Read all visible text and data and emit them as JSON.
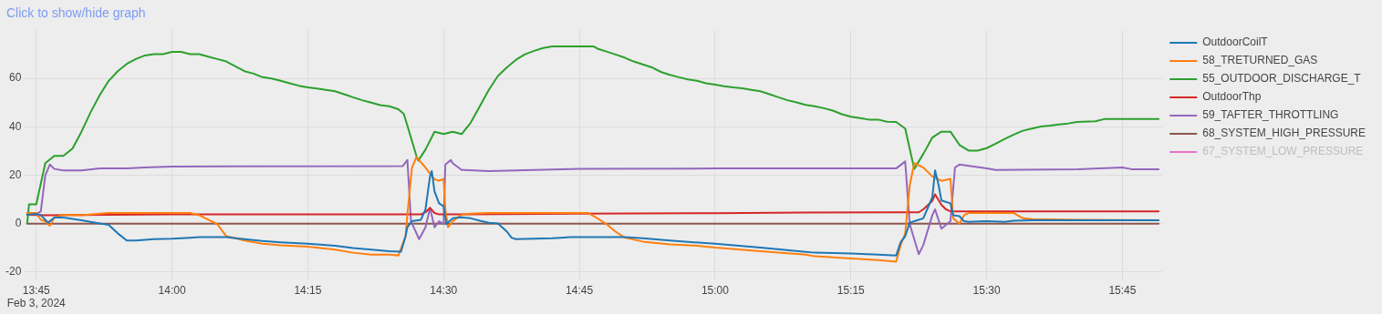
{
  "chart_data": {
    "type": "line",
    "annotations": [
      "Click to show/hide graph"
    ],
    "xlim": [
      "2024-02-03T13:43:45",
      "2024-02-03T15:49:25"
    ],
    "xticks": [
      {
        "value": "2024-02-03T13:45",
        "label": "13:45\nFeb 3, 2024"
      },
      {
        "value": "2024-02-03T14:00",
        "label": "14:00"
      },
      {
        "value": "2024-02-03T14:15",
        "label": "14:15"
      },
      {
        "value": "2024-02-03T14:30",
        "label": "14:30"
      },
      {
        "value": "2024-02-03T14:45",
        "label": "14:45"
      },
      {
        "value": "2024-02-03T15:00",
        "label": "15:00"
      },
      {
        "value": "2024-02-03T15:15",
        "label": "15:15"
      },
      {
        "value": "2024-02-03T15:30",
        "label": "15:30"
      },
      {
        "value": "2024-02-03T15:45",
        "label": "15:45"
      }
    ],
    "ylim": [
      -23.5,
      80
    ],
    "yticks": [
      -20,
      0,
      20,
      40,
      60
    ],
    "grid": true,
    "legend": "top right",
    "series": [
      {
        "name": "OutdoorCoilT",
        "color": "#1f77b4",
        "x": [
          "2024-02-03T13:44",
          "2024-02-03T13:45",
          "2024-02-03T13:45:30",
          "2024-02-03T13:46",
          "2024-02-03T13:46:18",
          "2024-02-03T13:47",
          "2024-02-03T13:48",
          "2024-02-03T13:49",
          "2024-02-03T13:50",
          "2024-02-03T13:51",
          "2024-02-03T13:52",
          "2024-02-03T13:53",
          "2024-02-03T13:54",
          "2024-02-03T13:55",
          "2024-02-03T13:56",
          "2024-02-03T13:58",
          "2024-02-03T14:00",
          "2024-02-03T14:02",
          "2024-02-03T14:03",
          "2024-02-03T14:06",
          "2024-02-03T14:08",
          "2024-02-03T14:10",
          "2024-02-03T14:12",
          "2024-02-03T14:15",
          "2024-02-03T14:18",
          "2024-02-03T14:20",
          "2024-02-03T14:22",
          "2024-02-03T14:24",
          "2024-02-03T14:25:18",
          "2024-02-03T14:25:48",
          "2024-02-03T14:26",
          "2024-02-03T14:26:30",
          "2024-02-03T14:27:30",
          "2024-02-03T14:28",
          "2024-02-03T14:28:30",
          "2024-02-03T14:28:42",
          "2024-02-03T14:29",
          "2024-02-03T14:29:30",
          "2024-02-03T14:30",
          "2024-02-03T14:30:18",
          "2024-02-03T14:31",
          "2024-02-03T14:32",
          "2024-02-03T14:33",
          "2024-02-03T14:34",
          "2024-02-03T14:35",
          "2024-02-03T14:36",
          "2024-02-03T14:37",
          "2024-02-03T14:37:30",
          "2024-02-03T14:38",
          "2024-02-03T14:40",
          "2024-02-03T14:42",
          "2024-02-03T14:43",
          "2024-02-03T14:44",
          "2024-02-03T14:50",
          "2024-02-03T14:52",
          "2024-02-03T14:55",
          "2024-02-03T15:00",
          "2024-02-03T15:05",
          "2024-02-03T15:10",
          "2024-02-03T15:11",
          "2024-02-03T15:15",
          "2024-02-03T15:18",
          "2024-02-03T15:20",
          "2024-02-03T15:20:30",
          "2024-02-03T15:21",
          "2024-02-03T15:21:30",
          "2024-02-03T15:22:30",
          "2024-02-03T15:23",
          "2024-02-03T15:24",
          "2024-02-03T15:24:18",
          "2024-02-03T15:24:42",
          "2024-02-03T15:25",
          "2024-02-03T15:26",
          "2024-02-03T15:26:18",
          "2024-02-03T15:27",
          "2024-02-03T15:27:30",
          "2024-02-03T15:28",
          "2024-02-03T15:30",
          "2024-02-03T15:32",
          "2024-02-03T15:33",
          "2024-02-03T15:35",
          "2024-02-03T15:49"
        ],
        "values": [
          3.7,
          4,
          3.5,
          1.6,
          0.4,
          2.5,
          2.5,
          2,
          1.4,
          0.7,
          0.1,
          -0.5,
          -4,
          -7,
          -7,
          -6.4,
          -6.2,
          -5.8,
          -5.6,
          -5.6,
          -6.4,
          -7.2,
          -7.7,
          -8.3,
          -9.1,
          -10.1,
          -10.7,
          -11.4,
          -11.6,
          -5.2,
          -1.5,
          1,
          1.6,
          5.9,
          19.5,
          21.7,
          13.3,
          8.4,
          7.2,
          -0.2,
          2.2,
          2.6,
          2.2,
          1.2,
          0.4,
          0.1,
          -3.3,
          -5.8,
          -6.4,
          -6.2,
          -6,
          -5.8,
          -5.6,
          -5.6,
          -6,
          -7,
          -8.3,
          -9.9,
          -11.7,
          -12,
          -12.3,
          -12.8,
          -13.2,
          -7.7,
          -5.2,
          0.4,
          1.6,
          2.2,
          10.9,
          22,
          15.8,
          9.6,
          8.4,
          3.5,
          3.1,
          1,
          0.7,
          1,
          0.7,
          1.2,
          1.4,
          1.4
        ]
      },
      {
        "name": "58_TRETURNED_GAS",
        "color": "#ff7f0e",
        "x": [
          "2024-02-03T13:44",
          "2024-02-03T13:45",
          "2024-02-03T13:45:30",
          "2024-02-03T13:46",
          "2024-02-03T13:46:30",
          "2024-02-03T13:47",
          "2024-02-03T13:48",
          "2024-02-03T13:50",
          "2024-02-03T13:52",
          "2024-02-03T13:53",
          "2024-02-03T14:02",
          "2024-02-03T14:03",
          "2024-02-03T14:04",
          "2024-02-03T14:05",
          "2024-02-03T14:06",
          "2024-02-03T14:07",
          "2024-02-03T14:08",
          "2024-02-03T14:10",
          "2024-02-03T14:12",
          "2024-02-03T14:15",
          "2024-02-03T14:18",
          "2024-02-03T14:20",
          "2024-02-03T14:22",
          "2024-02-03T14:24",
          "2024-02-03T14:25",
          "2024-02-03T14:25:48",
          "2024-02-03T14:26",
          "2024-02-03T14:26:30",
          "2024-02-03T14:27",
          "2024-02-03T14:28",
          "2024-02-03T14:29",
          "2024-02-03T14:29:30",
          "2024-02-03T14:30",
          "2024-02-03T14:30:12",
          "2024-02-03T14:30:30",
          "2024-02-03T14:31",
          "2024-02-03T14:32",
          "2024-02-03T14:33",
          "2024-02-03T14:35",
          "2024-02-03T14:46",
          "2024-02-03T14:47",
          "2024-02-03T14:48",
          "2024-02-03T14:49",
          "2024-02-03T14:50",
          "2024-02-03T14:52",
          "2024-02-03T14:55",
          "2024-02-03T14:58",
          "2024-02-03T15:00",
          "2024-02-03T15:05",
          "2024-02-03T15:10",
          "2024-02-03T15:11",
          "2024-02-03T15:15",
          "2024-02-03T15:18",
          "2024-02-03T15:20",
          "2024-02-03T15:20:30",
          "2024-02-03T15:21",
          "2024-02-03T15:21:30",
          "2024-02-03T15:22",
          "2024-02-03T15:23",
          "2024-02-03T15:24",
          "2024-02-03T15:25",
          "2024-02-03T15:26",
          "2024-02-03T15:26:18",
          "2024-02-03T15:27",
          "2024-02-03T15:27:30",
          "2024-02-03T15:28",
          "2024-02-03T15:33",
          "2024-02-03T15:34",
          "2024-02-03T15:35",
          "2024-02-03T15:40",
          "2024-02-03T15:49"
        ],
        "values": [
          4.4,
          4.4,
          1.6,
          1,
          -0.9,
          2.5,
          3.7,
          3.5,
          4.1,
          4.4,
          4.4,
          3.5,
          1.6,
          -0.2,
          -5.2,
          -6,
          -7,
          -8.3,
          -8.9,
          -9.5,
          -10.7,
          -12,
          -12.8,
          -12.8,
          -13.2,
          -5.2,
          3.5,
          23,
          27.5,
          23.2,
          18.3,
          17.7,
          18.5,
          5.9,
          -1.5,
          1,
          3.7,
          4.1,
          4.4,
          4.4,
          2.2,
          -0.2,
          -3.3,
          -5.8,
          -7.4,
          -8.6,
          -9.1,
          -9.9,
          -11.4,
          -12.8,
          -13.5,
          -14.4,
          -15.1,
          -15.7,
          -8.9,
          -4,
          15.8,
          25,
          23.2,
          19.5,
          17.7,
          18.5,
          2.2,
          0,
          3.5,
          4.4,
          4.4,
          2.2,
          1.9,
          1.6,
          1.4
        ]
      },
      {
        "name": "55_OUTDOOR_DISCHARGE_T",
        "color": "#2ca02c",
        "x": [
          "2024-02-03T13:44",
          "2024-02-03T13:44:12",
          "2024-02-03T13:45",
          "2024-02-03T13:46",
          "2024-02-03T13:47",
          "2024-02-03T13:48",
          "2024-02-03T13:49",
          "2024-02-03T13:50",
          "2024-02-03T13:51",
          "2024-02-03T13:52",
          "2024-02-03T13:53",
          "2024-02-03T13:54",
          "2024-02-03T13:55",
          "2024-02-03T13:56",
          "2024-02-03T13:57",
          "2024-02-03T13:58",
          "2024-02-03T13:59",
          "2024-02-03T14:00",
          "2024-02-03T14:01",
          "2024-02-03T14:02",
          "2024-02-03T14:03",
          "2024-02-03T14:04",
          "2024-02-03T14:05",
          "2024-02-03T14:06",
          "2024-02-03T14:07",
          "2024-02-03T14:08",
          "2024-02-03T14:09",
          "2024-02-03T14:10",
          "2024-02-03T14:11",
          "2024-02-03T14:12",
          "2024-02-03T14:13",
          "2024-02-03T14:14",
          "2024-02-03T14:15",
          "2024-02-03T14:16",
          "2024-02-03T14:17",
          "2024-02-03T14:18",
          "2024-02-03T14:19",
          "2024-02-03T14:20",
          "2024-02-03T14:21",
          "2024-02-03T14:22",
          "2024-02-03T14:23",
          "2024-02-03T14:24",
          "2024-02-03T14:25",
          "2024-02-03T14:25:36",
          "2024-02-03T14:26",
          "2024-02-03T14:27",
          "2024-02-03T14:27:12",
          "2024-02-03T14:28",
          "2024-02-03T14:29",
          "2024-02-03T14:30",
          "2024-02-03T14:31",
          "2024-02-03T14:32",
          "2024-02-03T14:33",
          "2024-02-03T14:34",
          "2024-02-03T14:35",
          "2024-02-03T14:36",
          "2024-02-03T14:37",
          "2024-02-03T14:38",
          "2024-02-03T14:39",
          "2024-02-03T14:40",
          "2024-02-03T14:41",
          "2024-02-03T14:42",
          "2024-02-03T14:46:36",
          "2024-02-03T14:47",
          "2024-02-03T14:48",
          "2024-02-03T14:49",
          "2024-02-03T14:50",
          "2024-02-03T14:51",
          "2024-02-03T14:52",
          "2024-02-03T14:53",
          "2024-02-03T14:54",
          "2024-02-03T14:55",
          "2024-02-03T14:56",
          "2024-02-03T14:57",
          "2024-02-03T14:58",
          "2024-02-03T14:59",
          "2024-02-03T15:00",
          "2024-02-03T15:01",
          "2024-02-03T15:02",
          "2024-02-03T15:03",
          "2024-02-03T15:04",
          "2024-02-03T15:05",
          "2024-02-03T15:06",
          "2024-02-03T15:07",
          "2024-02-03T15:08",
          "2024-02-03T15:09",
          "2024-02-03T15:10",
          "2024-02-03T15:11",
          "2024-02-03T15:12",
          "2024-02-03T15:13",
          "2024-02-03T15:14",
          "2024-02-03T15:15",
          "2024-02-03T15:16",
          "2024-02-03T15:17",
          "2024-02-03T15:18",
          "2024-02-03T15:19",
          "2024-02-03T15:20",
          "2024-02-03T15:21",
          "2024-02-03T15:22",
          "2024-02-03T15:23",
          "2024-02-03T15:24",
          "2024-02-03T15:25",
          "2024-02-03T15:26",
          "2024-02-03T15:27",
          "2024-02-03T15:28",
          "2024-02-03T15:29",
          "2024-02-03T15:30",
          "2024-02-03T15:31",
          "2024-02-03T15:32",
          "2024-02-03T15:33",
          "2024-02-03T15:34",
          "2024-02-03T15:35",
          "2024-02-03T15:36",
          "2024-02-03T15:37",
          "2024-02-03T15:38",
          "2024-02-03T15:39",
          "2024-02-03T15:40",
          "2024-02-03T15:42",
          "2024-02-03T15:43",
          "2024-02-03T15:49"
        ],
        "values": [
          0,
          8,
          8,
          25,
          28,
          28,
          31,
          38,
          46,
          53,
          59,
          63,
          66,
          68,
          69.5,
          70,
          70,
          71,
          71,
          70,
          70,
          69,
          68,
          67,
          65,
          63,
          62,
          60.5,
          60,
          59,
          58,
          57,
          56.3,
          55.8,
          55.3,
          54.7,
          53.5,
          52.2,
          51,
          50,
          49,
          48.5,
          47.3,
          45.4,
          40.5,
          28,
          26,
          30.6,
          38,
          37,
          38,
          37,
          41.7,
          48.5,
          55.3,
          61,
          64.6,
          67.7,
          70,
          71.4,
          72.6,
          73.2,
          73.2,
          72.3,
          71.1,
          69.9,
          68.6,
          67,
          65.8,
          64.6,
          62.7,
          61.5,
          60.5,
          59.6,
          59,
          58,
          57.4,
          56.8,
          56.3,
          55.9,
          55.3,
          54.7,
          53.5,
          52.2,
          51,
          50.1,
          49.1,
          48.5,
          47.7,
          46.7,
          45.2,
          44.2,
          43.6,
          43,
          43,
          42.1,
          42,
          39.3,
          22.6,
          28.8,
          35.6,
          38,
          38,
          32.5,
          30.2,
          30.2,
          31.2,
          33,
          35,
          36.8,
          38.4,
          39.3,
          40.1,
          40.5,
          41,
          41.4,
          42,
          42.3,
          43.2,
          43.2
        ]
      },
      {
        "name": "OutdoorThp",
        "color": "#d62728",
        "x": [
          "2024-02-03T13:44",
          "2024-02-03T13:46",
          "2024-02-03T14:00",
          "2024-02-03T14:27:30",
          "2024-02-03T14:28",
          "2024-02-03T14:28:30",
          "2024-02-03T14:29",
          "2024-02-03T14:29:30",
          "2024-02-03T14:45",
          "2024-02-03T15:00",
          "2024-02-03T15:10",
          "2024-02-03T15:20",
          "2024-02-03T15:22:30",
          "2024-02-03T15:23",
          "2024-02-03T15:24",
          "2024-02-03T15:24:18",
          "2024-02-03T15:25",
          "2024-02-03T15:25:30",
          "2024-02-03T15:26",
          "2024-02-03T15:49"
        ],
        "values": [
          3.7,
          3.5,
          3.8,
          3.8,
          4.7,
          6.5,
          4.4,
          3.8,
          4.1,
          4.3,
          4.6,
          4.7,
          4.7,
          5.9,
          9.4,
          12.1,
          7.8,
          5.9,
          5.1,
          5.1
        ]
      },
      {
        "name": "59_TAFTER_THROTTLING",
        "color": "#9467bd",
        "x": [
          "2024-02-03T13:44",
          "2024-02-03T13:45",
          "2024-02-03T13:45:30",
          "2024-02-03T13:46",
          "2024-02-03T13:46:30",
          "2024-02-03T13:47",
          "2024-02-03T13:48",
          "2024-02-03T13:50",
          "2024-02-03T13:52",
          "2024-02-03T13:55",
          "2024-02-03T13:57",
          "2024-02-03T14:00",
          "2024-02-03T14:25:30",
          "2024-02-03T14:26",
          "2024-02-03T14:26:24",
          "2024-02-03T14:27:18",
          "2024-02-03T14:28",
          "2024-02-03T14:28:30",
          "2024-02-03T14:29",
          "2024-02-03T14:29:30",
          "2024-02-03T14:30",
          "2024-02-03T14:30:12",
          "2024-02-03T14:30:48",
          "2024-02-03T14:31",
          "2024-02-03T14:32",
          "2024-02-03T14:35",
          "2024-02-03T14:40",
          "2024-02-03T14:45",
          "2024-02-03T15:00",
          "2024-02-03T15:20",
          "2024-02-03T15:21",
          "2024-02-03T15:21:30",
          "2024-02-03T15:22",
          "2024-02-03T15:22:30",
          "2024-02-03T15:23",
          "2024-02-03T15:24",
          "2024-02-03T15:24:18",
          "2024-02-03T15:25",
          "2024-02-03T15:26",
          "2024-02-03T15:26:30",
          "2024-02-03T15:27",
          "2024-02-03T15:30",
          "2024-02-03T15:31",
          "2024-02-03T15:40",
          "2024-02-03T15:45",
          "2024-02-03T15:46",
          "2024-02-03T15:49"
        ],
        "values": [
          4,
          4,
          5,
          20,
          24.4,
          22.6,
          22,
          22,
          22.8,
          22.8,
          23.2,
          23.6,
          23.8,
          26.3,
          1,
          -6.4,
          -1.5,
          6.5,
          -1.5,
          1,
          -0.2,
          24.4,
          26.3,
          25,
          22.2,
          21.7,
          22.2,
          22.6,
          22.8,
          22.8,
          25.7,
          -0.2,
          -6.4,
          -12.6,
          -8.9,
          3.5,
          5.9,
          -2.1,
          1,
          23.2,
          24.4,
          22.8,
          22.2,
          22.5,
          23.2,
          22.5,
          22.5
        ]
      },
      {
        "name": "68_SYSTEM_HIGH_PRESSURE",
        "color": "#8c564b",
        "x": [
          "2024-02-03T13:44",
          "2024-02-03T15:49"
        ],
        "values": [
          0,
          0
        ]
      },
      {
        "name": "67_SYSTEM_LOW_PRESSURE",
        "color": "#e377c2"
      }
    ]
  }
}
